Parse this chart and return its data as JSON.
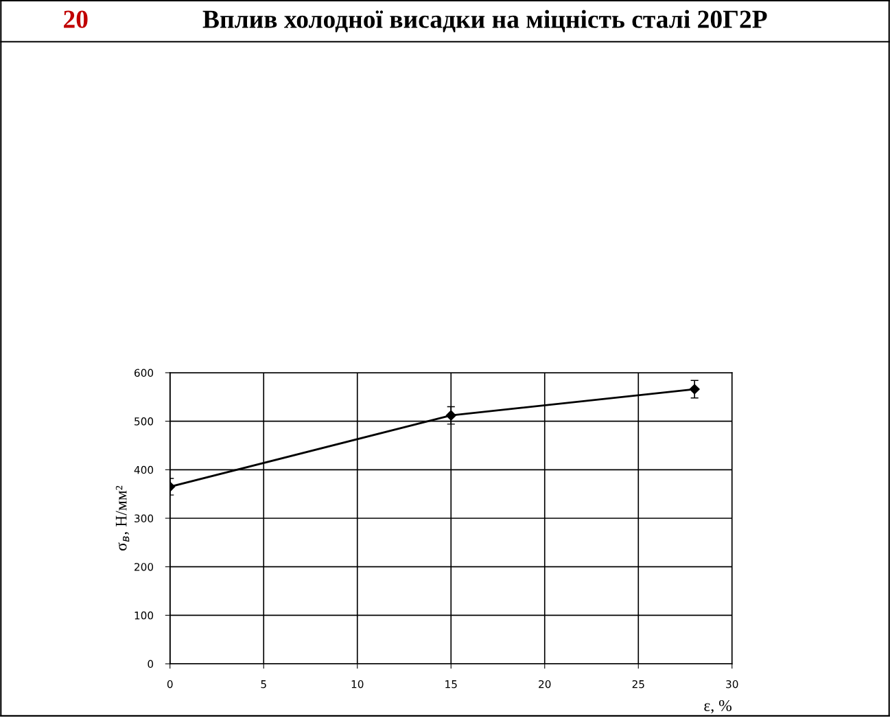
{
  "chart_data": {
    "type": "line",
    "title": "Вплив холодної висадки на міцність сталі 20Г2Р",
    "annotations": [
      "20"
    ],
    "xlabel": "ε, %",
    "ylabel": "σ$_{в}$, Н/мм²",
    "x": [
      0,
      15,
      28
    ],
    "series": [
      {
        "color": "#000000",
        "values": [
          365,
          512,
          566
        ],
        "errors": [
          17,
          18,
          18
        ]
      }
    ],
    "marker": "diamond",
    "line_style": "solid",
    "grid": true,
    "legend": false,
    "xlim": [
      0,
      30
    ],
    "xticks": [
      0,
      5,
      10,
      15,
      20,
      25,
      30
    ],
    "ylim": [
      0,
      600
    ],
    "yticks": [
      0,
      100,
      200,
      300,
      400,
      500,
      600
    ]
  }
}
